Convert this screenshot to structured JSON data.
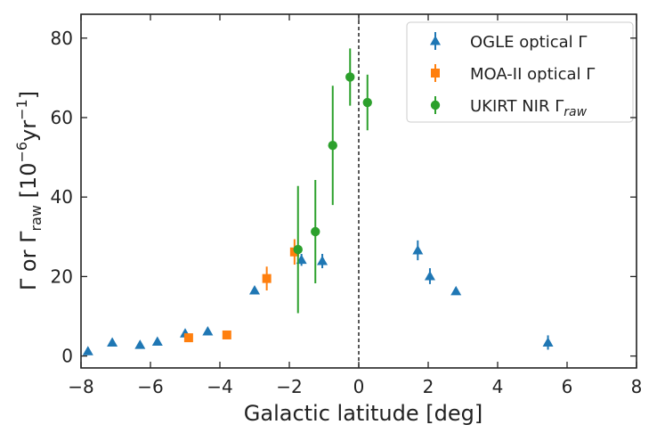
{
  "chart_data": {
    "type": "scatter",
    "title": "",
    "xlabel": "Galactic latitude [deg]",
    "ylabel": "Γ or Γraw [10⁻⁶yr⁻¹]",
    "ylabel_parts": {
      "pre": "Γ or Γ",
      "sub": "raw",
      "mid": " [10",
      "sup": "−6",
      "mid2": "yr",
      "sup2": "−1",
      "post": "]"
    },
    "xlim": [
      -8,
      8
    ],
    "ylim": [
      -3,
      86
    ],
    "xticks": [
      -8,
      -6,
      -4,
      -2,
      0,
      2,
      4,
      6,
      8
    ],
    "yticks": [
      0,
      20,
      40,
      60,
      80
    ],
    "xtick_labels": [
      "−8",
      "−6",
      "−4",
      "−2",
      "0",
      "2",
      "4",
      "6",
      "8"
    ],
    "ytick_labels": [
      "0",
      "20",
      "40",
      "60",
      "80"
    ],
    "vline": {
      "x": 0,
      "style": "dashed",
      "color": "#000000"
    },
    "legend_position": "top-right",
    "series": [
      {
        "name": "OGLE optical Γ",
        "legend_label": "OGLE optical Γ",
        "marker": "triangle",
        "color": "#1f77b4",
        "points": [
          {
            "x": -7.8,
            "y": 1.2,
            "err": 0.5
          },
          {
            "x": -7.1,
            "y": 3.4,
            "err": 0.5
          },
          {
            "x": -6.3,
            "y": 2.8,
            "err": 0.5
          },
          {
            "x": -5.8,
            "y": 3.6,
            "err": 0.5
          },
          {
            "x": -5.0,
            "y": 5.7,
            "err": 0.7
          },
          {
            "x": -4.35,
            "y": 6.2,
            "err": 0.7
          },
          {
            "x": -3.0,
            "y": 16.5,
            "err": 1.0
          },
          {
            "x": -1.65,
            "y": 24.2,
            "err": 1.5
          },
          {
            "x": -1.05,
            "y": 23.9,
            "err": 1.8
          },
          {
            "x": 1.7,
            "y": 26.6,
            "err": 2.5
          },
          {
            "x": 2.05,
            "y": 20.1,
            "err": 2.0
          },
          {
            "x": 2.8,
            "y": 16.3,
            "err": 0.8
          },
          {
            "x": 5.45,
            "y": 3.4,
            "err": 1.8
          }
        ]
      },
      {
        "name": "MOA-II optical Γ",
        "legend_label": "MOA-II optical Γ",
        "marker": "square",
        "color": "#ff7f0e",
        "points": [
          {
            "x": -4.9,
            "y": 4.6,
            "err": 0.8
          },
          {
            "x": -3.8,
            "y": 5.3,
            "err": 0.8
          },
          {
            "x": -2.65,
            "y": 19.5,
            "err": 3.0
          },
          {
            "x": -1.85,
            "y": 26.2,
            "err": 3.2
          }
        ]
      },
      {
        "name": "UKIRT NIR Γraw",
        "legend_label": "UKIRT NIR Γ",
        "legend_sub": "raw",
        "marker": "circle",
        "color": "#2ca02c",
        "points": [
          {
            "x": -1.75,
            "y": 26.8,
            "err": 16.0
          },
          {
            "x": -1.25,
            "y": 31.3,
            "err": 13.0
          },
          {
            "x": -0.75,
            "y": 53.0,
            "err": 15.0
          },
          {
            "x": -0.25,
            "y": 70.2,
            "err": 7.2
          },
          {
            "x": 0.25,
            "y": 63.8,
            "err": 7.0
          }
        ]
      }
    ]
  }
}
